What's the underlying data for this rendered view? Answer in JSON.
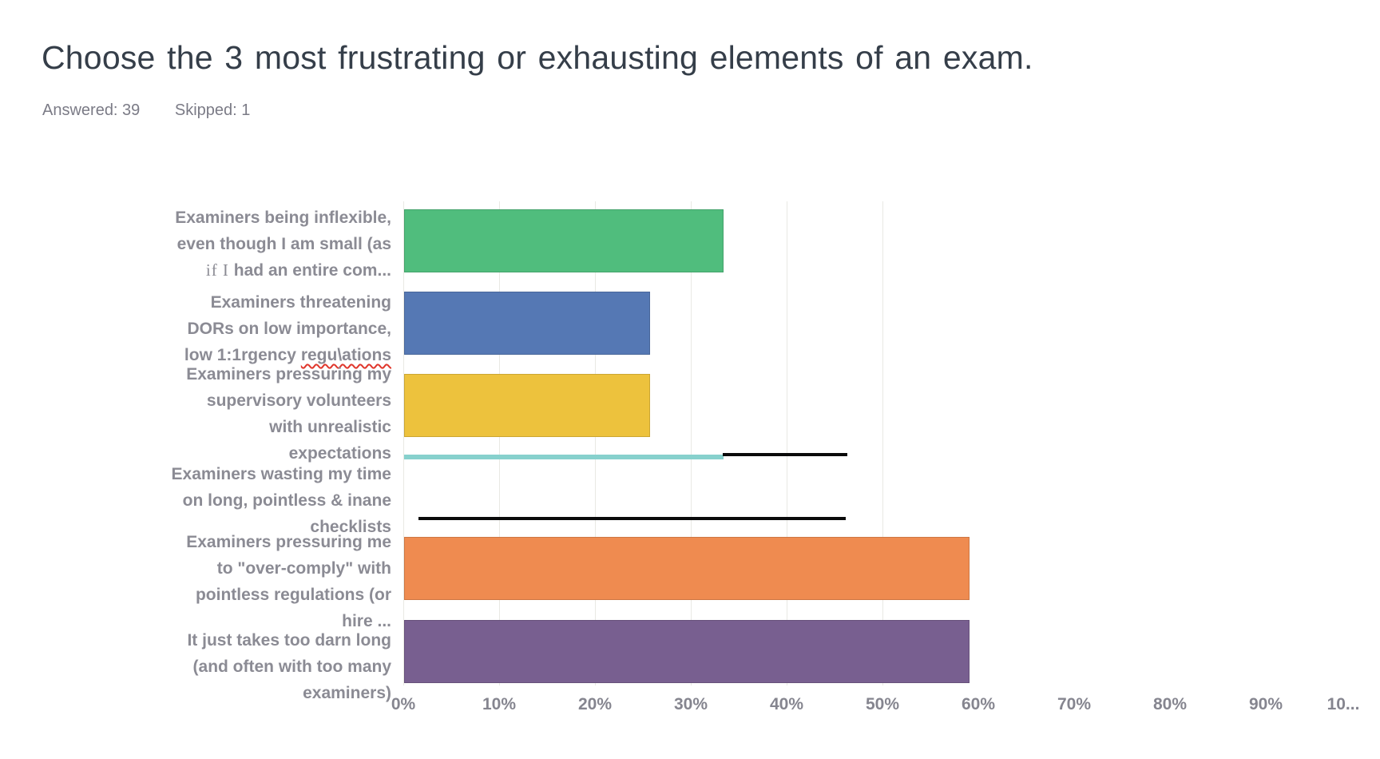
{
  "header": {
    "title": "Choose the 3 most frustrating or exhausting elements of an exam.",
    "answered": "Answered: 39",
    "skipped": "Skipped: 1"
  },
  "chart_data": {
    "type": "bar",
    "orientation": "horizontal",
    "title": "Choose the 3 most frustrating or exhausting elements of an exam.",
    "answered_count": 39,
    "skipped_count": 1,
    "xlim": [
      0,
      100
    ],
    "x_ticks": [
      "0%",
      "10%",
      "20%",
      "30%",
      "40%",
      "50%",
      "60%",
      "70%",
      "80%",
      "90%",
      "10..."
    ],
    "gridlines_pct": [
      0,
      10,
      20,
      30,
      40,
      50
    ],
    "grid": "vertical-light",
    "legend": "none",
    "categories": [
      {
        "name": "Examiners being inflexible, even though I am small (as if I had an entire com...",
        "value_pct": 33.33,
        "color": "#50bd7d",
        "bar_style": "normal",
        "label_lines": [
          [
            {
              "text": "Examiners being inflexible,"
            }
          ],
          [
            {
              "text": "even though I am small (as"
            }
          ],
          [
            {
              "text": "if I",
              "style": "serif"
            },
            {
              "text": "  had an entire com..."
            }
          ]
        ]
      },
      {
        "name": "Examiners threatening DORs on low importance, low 1:1rgency regu\\ations",
        "value_pct": 25.64,
        "color": "#5578b4",
        "bar_style": "normal",
        "label_lines": [
          [
            {
              "text": "Examiners threatening"
            }
          ],
          [
            {
              "text": "DORs on low importance,"
            }
          ],
          [
            {
              "text": "low 1:1rgency "
            },
            {
              "text": "regu\\ations",
              "style": "misspelled"
            }
          ]
        ]
      },
      {
        "name": "Examiners pressuring my supervisory volunteers with unrealistic expectations",
        "value_pct": 25.64,
        "color": "#edc23d",
        "bar_style": "normal",
        "label_lines": [
          [
            {
              "text": "Examiners pressuring my"
            }
          ],
          [
            {
              "text": "supervisory volunteers"
            }
          ],
          [
            {
              "text": "with unrealistic"
            }
          ],
          [
            {
              "text": "expectations"
            }
          ]
        ]
      },
      {
        "name": "Examiners wasting my time on long, pointless & inane checklists",
        "value_pct": 33.33,
        "color": "#87d1cd",
        "bar_style": "collapsed-thin",
        "label_lines": [
          [
            {
              "text": "Examiners wasting my time"
            }
          ],
          [
            {
              "text": "on long, pointless & inane"
            }
          ],
          [
            {
              "text": "checklists"
            }
          ]
        ]
      },
      {
        "name": "Examiners pressuring me to \"over-comply\" with pointless regulations (or hire ...",
        "value_pct": 58.97,
        "color": "#ef8b50",
        "bar_style": "normal",
        "label_lines": [
          [
            {
              "text": "Examiners pressuring me"
            }
          ],
          [
            {
              "text": "to \"over-comply\" with"
            }
          ],
          [
            {
              "text": "pointless regulations (or"
            }
          ],
          [
            {
              "text": "hire ..."
            }
          ]
        ]
      },
      {
        "name": "It just takes too darn long (and often with too many examiners)",
        "value_pct": 58.97,
        "color": "#785f90",
        "bar_style": "normal",
        "label_lines": [
          [
            {
              "text": "It just takes too darn long"
            }
          ],
          [
            {
              "text": "(and often with too many"
            }
          ],
          [
            {
              "text": "examiners)"
            }
          ]
        ]
      }
    ],
    "annotation_lines": [
      {
        "from_pct": 33.3,
        "to_pct": 46.3,
        "anchor": "end-of-collapsed-teal-bar",
        "color": "#0a0a0a"
      },
      {
        "from_pct": 1.6,
        "to_pct": 46.2,
        "anchor": "between-checklists-row-and-orange-row",
        "color": "#0a0a0a"
      }
    ]
  }
}
